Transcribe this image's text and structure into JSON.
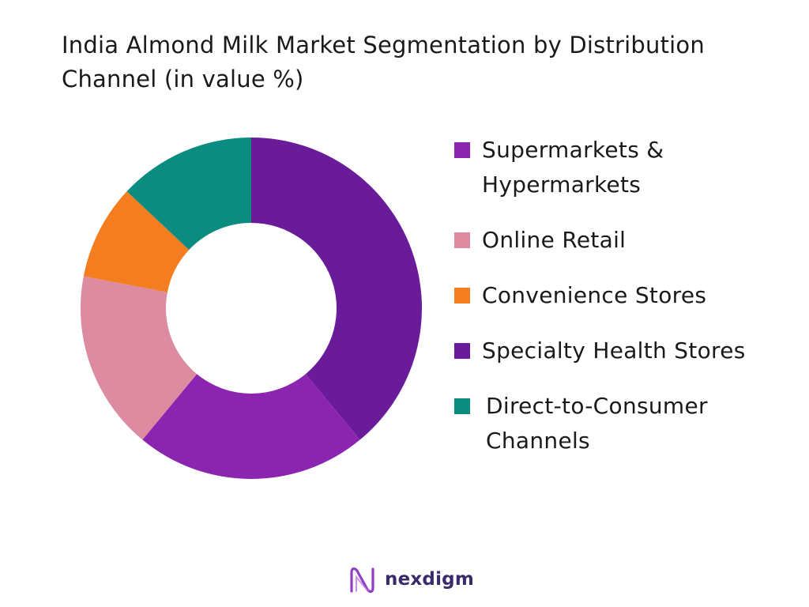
{
  "title": "India Almond Milk Market Segmentation by Distribution Channel (in value %)",
  "chart_data": {
    "type": "pie",
    "title": "India Almond Milk Market Segmentation by Distribution Channel (in value %)",
    "donut": true,
    "legend_position": "right",
    "categories": [
      "Supermarkets & Hypermarkets",
      "Online Retail",
      "Convenience Stores",
      "Specialty Health Stores",
      "Direct-to-Consumer Channels"
    ],
    "values": [
      22,
      17,
      9,
      39,
      13
    ],
    "colors": [
      "#8b25b0",
      "#dc8ba0",
      "#f47d20",
      "#6a1b9a",
      "#0a8c80"
    ]
  },
  "legend": {
    "items": [
      {
        "label": "Supermarkets &\nHypermarkets",
        "color": "#8b25b0"
      },
      {
        "label": "Online Retail",
        "color": "#dc8ba0"
      },
      {
        "label": "Convenience Stores",
        "color": "#f47d20"
      },
      {
        "label": "Specialty Health Stores",
        "color": "#6a1b9a"
      },
      {
        "label": "Direct-to-Consumer\nChannels",
        "color": "#0a8c80"
      }
    ]
  },
  "branding": {
    "name": "nexdigm",
    "logo_icon": "nexdigm-logo-icon"
  }
}
